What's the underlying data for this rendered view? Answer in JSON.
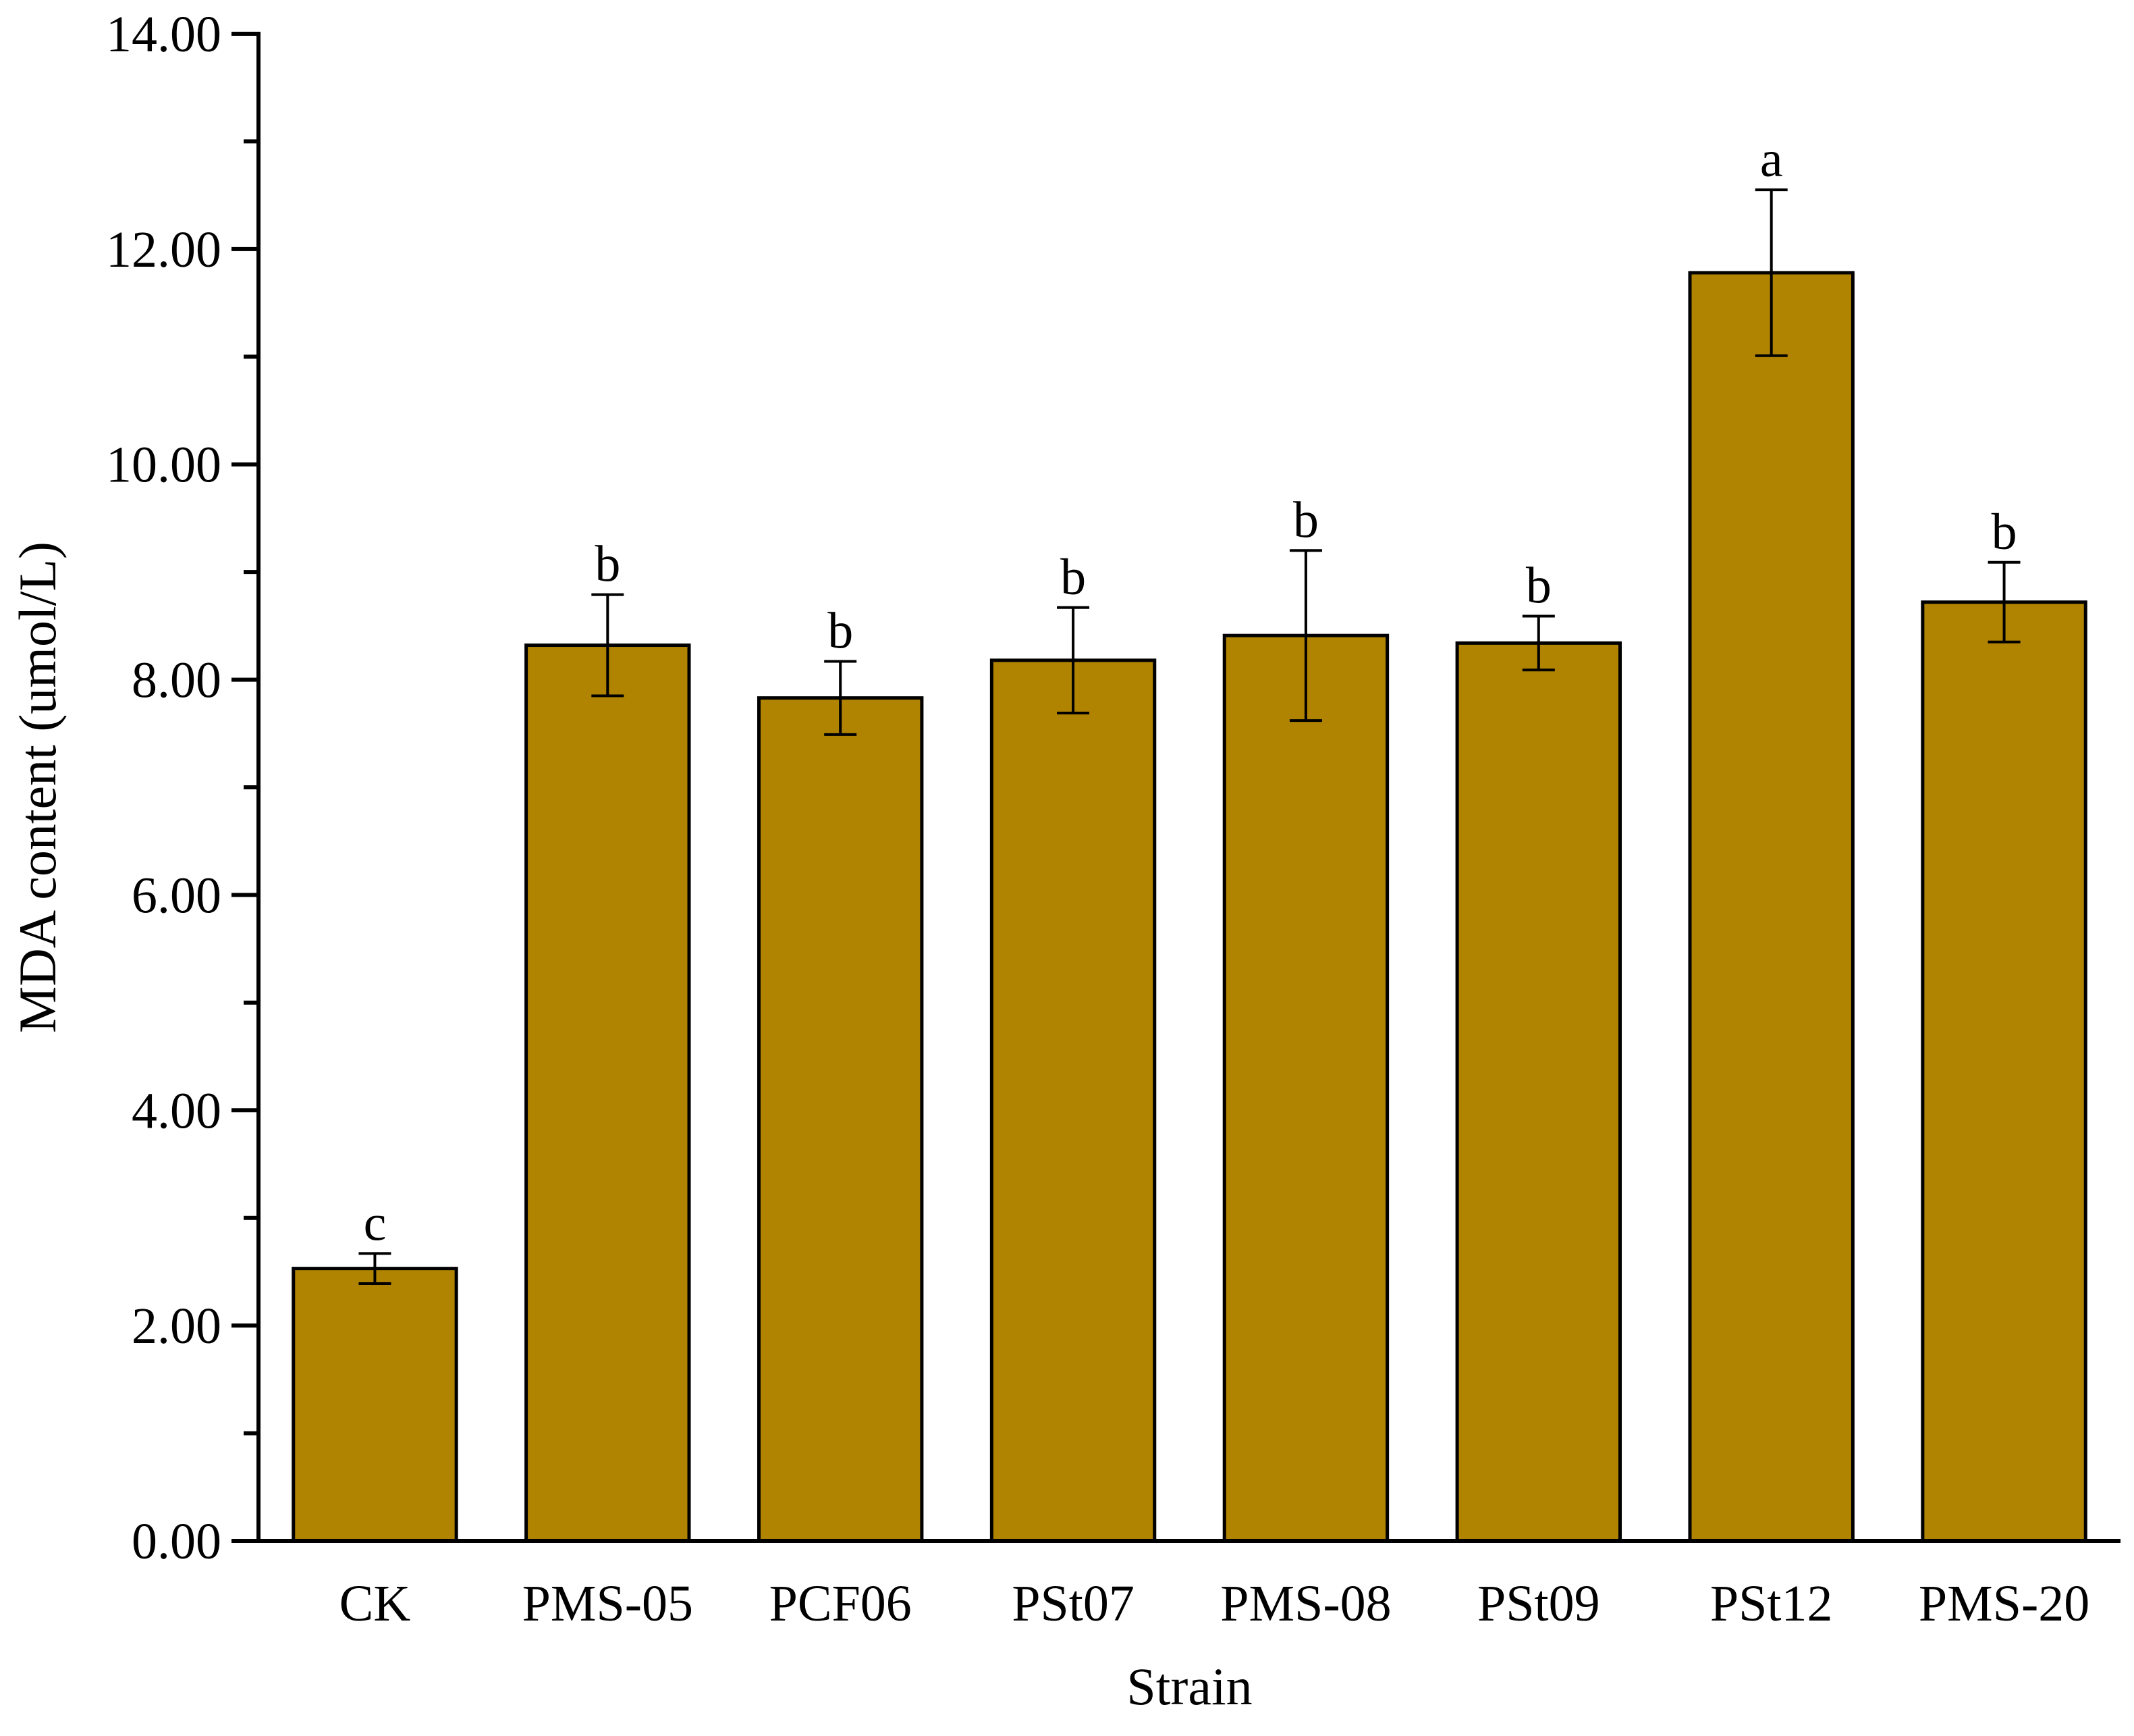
{
  "chart_data": {
    "type": "bar",
    "xlabel": "Strain",
    "ylabel": "MDA content (umol/L)",
    "ylim": [
      0,
      14
    ],
    "yticks": [
      "0.00",
      "2.00",
      "4.00",
      "6.00",
      "8.00",
      "10.00",
      "12.00",
      "14.00"
    ],
    "categories": [
      "CK",
      "PMS-05",
      "PCF06",
      "PSt07",
      "PMS-08",
      "PSt09",
      "PSt12",
      "PMS-20"
    ],
    "values": [
      2.53,
      8.32,
      7.83,
      8.18,
      8.41,
      8.34,
      11.78,
      8.72
    ],
    "errors": [
      0.14,
      0.47,
      0.34,
      0.49,
      0.79,
      0.25,
      0.77,
      0.37
    ],
    "significance": [
      "c",
      "b",
      "b",
      "b",
      "b",
      "b",
      "a",
      "b"
    ],
    "bar_color": "#b08300",
    "grid": false,
    "legend": "none"
  }
}
